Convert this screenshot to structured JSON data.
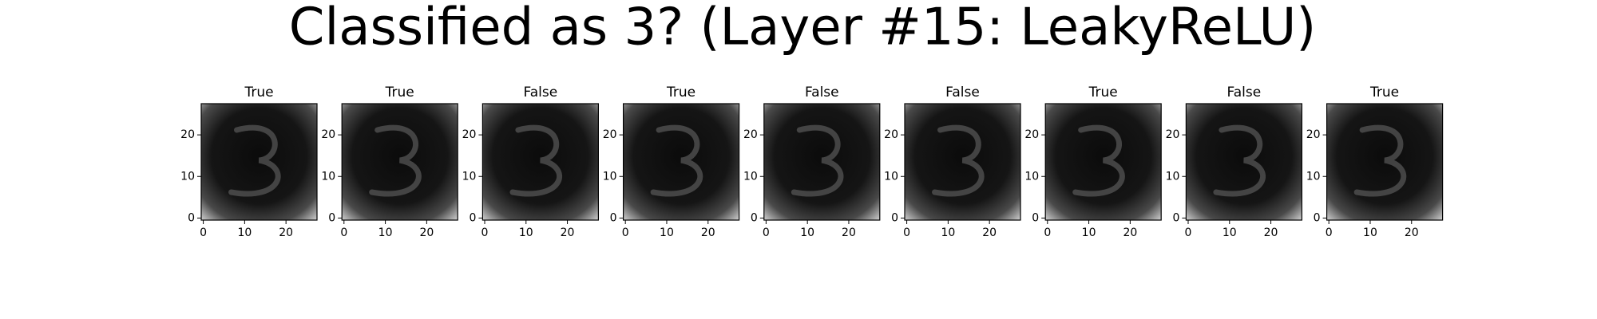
{
  "chart_data": {
    "type": "image",
    "title": "Classified as 3? (Layer #15: LeakyReLU)",
    "panels": [
      {
        "title": "True"
      },
      {
        "title": "True"
      },
      {
        "title": "False"
      },
      {
        "title": "True"
      },
      {
        "title": "False"
      },
      {
        "title": "False"
      },
      {
        "title": "True"
      },
      {
        "title": "False"
      },
      {
        "title": "True"
      }
    ],
    "xlim": [
      -0.5,
      27.5
    ],
    "ylim": [
      27.5,
      -0.5
    ],
    "xticks": [
      0,
      10,
      20
    ],
    "yticks": [
      0,
      10,
      20
    ]
  }
}
